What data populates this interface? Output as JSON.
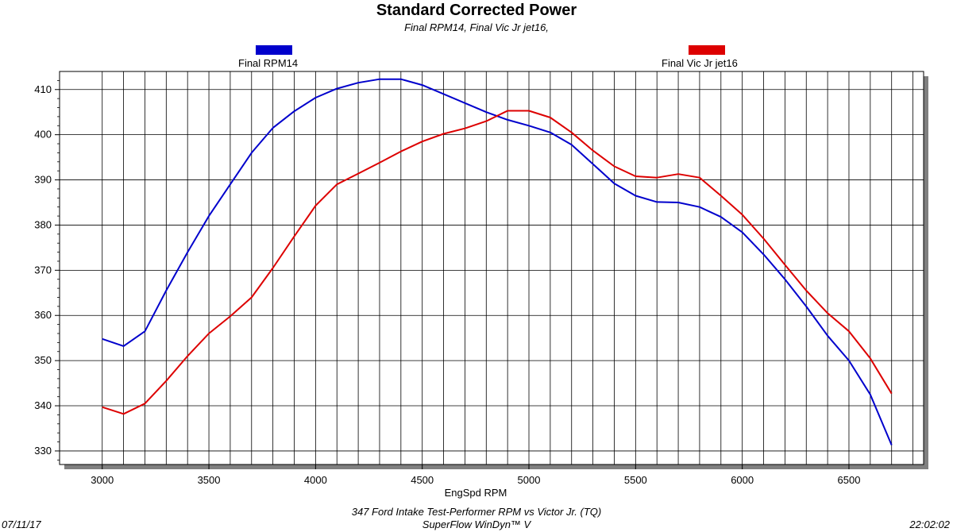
{
  "chart_data": {
    "type": "line",
    "title": "Standard Corrected Power",
    "subtitle": "Final RPM14, Final Vic Jr jet16,",
    "xlabel": "EngSpd RPM",
    "ylabel": "",
    "xlim": [
      2800,
      6850
    ],
    "ylim": [
      327,
      414
    ],
    "x_ticks": [
      3000,
      3500,
      4000,
      4500,
      5000,
      5500,
      6000,
      6500
    ],
    "y_ticks": [
      330,
      340,
      350,
      360,
      370,
      380,
      390,
      400,
      410
    ],
    "grid": true,
    "series": [
      {
        "name": "Final RPM14",
        "color": "#0000cc",
        "x": [
          3000,
          3100,
          3200,
          3300,
          3400,
          3500,
          3600,
          3700,
          3800,
          3900,
          4000,
          4100,
          4200,
          4300,
          4400,
          4500,
          4600,
          4700,
          4800,
          4900,
          5000,
          5100,
          5200,
          5300,
          5400,
          5500,
          5600,
          5700,
          5800,
          5900,
          6000,
          6100,
          6200,
          6300,
          6400,
          6500,
          6600,
          6700
        ],
        "y": [
          354.8,
          353.2,
          356.5,
          365.5,
          374,
          382,
          389,
          396,
          401.5,
          405.2,
          408.2,
          410.2,
          411.5,
          412.3,
          412.3,
          411,
          409,
          407,
          405,
          403.3,
          402,
          400.5,
          397.8,
          393.5,
          389.2,
          386.5,
          385.1,
          385,
          384,
          381.8,
          378.4,
          373.5,
          368,
          362,
          355.5,
          350,
          342.5,
          331.3
        ]
      },
      {
        "name": "Final Vic Jr jet16",
        "color": "#dd0000",
        "x": [
          3000,
          3100,
          3200,
          3300,
          3400,
          3500,
          3600,
          3700,
          3800,
          3900,
          4000,
          4100,
          4200,
          4300,
          4400,
          4500,
          4600,
          4700,
          4800,
          4900,
          5000,
          5100,
          5200,
          5300,
          5400,
          5500,
          5600,
          5700,
          5800,
          5900,
          6000,
          6100,
          6200,
          6300,
          6400,
          6500,
          6600,
          6700
        ],
        "y": [
          339.7,
          338.2,
          340.5,
          345.5,
          351,
          356,
          359.8,
          364,
          370.5,
          377.5,
          384.3,
          389,
          391.4,
          393.8,
          396.3,
          398.5,
          400.2,
          401.4,
          403,
          405.3,
          405.3,
          403.8,
          400.5,
          396.5,
          393,
          390.8,
          390.5,
          391.3,
          390.5,
          386.5,
          382.3,
          377,
          371.2,
          365.5,
          360.5,
          356.5,
          350.5,
          342.7
        ]
      }
    ]
  },
  "footer": {
    "left": "07/11/17",
    "center_line1": "347 Ford Intake Test-Performer RPM vs Victor Jr. (TQ)",
    "center_line2": "SuperFlow WinDyn™ V",
    "right": "22:02:02"
  }
}
